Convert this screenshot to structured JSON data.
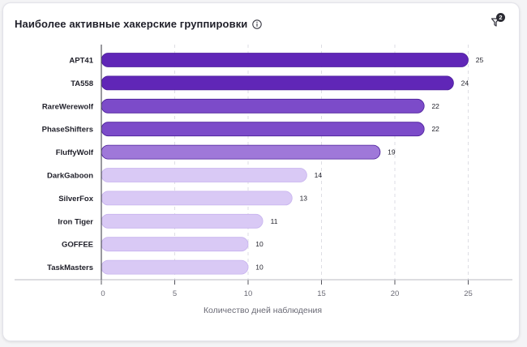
{
  "header": {
    "title": "Наиболее активные хакерские группировки",
    "filter_count": "2"
  },
  "icons": {
    "info": "info-circle-icon",
    "filter": "filter-funnel-icon"
  },
  "colors": {
    "dark": "#6026b7",
    "mid": "#7c4bc9",
    "medium_light": "#9f78d9",
    "light": "#d9c9f5"
  },
  "chart_data": {
    "type": "bar",
    "orientation": "horizontal",
    "categories": [
      "APT41",
      "TA558",
      "RareWerewolf",
      "PhaseShifters",
      "FluffyWolf",
      "DarkGaboon",
      "SilverFox",
      "Iron Tiger",
      "GOFFEE",
      "TaskMasters"
    ],
    "values": [
      25,
      24,
      22,
      22,
      19,
      14,
      13,
      11,
      10,
      10
    ],
    "xlabel": "Количество дней наблюдения",
    "xlim": [
      0,
      28
    ],
    "xticks": [
      0,
      5,
      10,
      15,
      20,
      25
    ],
    "grid": "vertical-dashed"
  }
}
